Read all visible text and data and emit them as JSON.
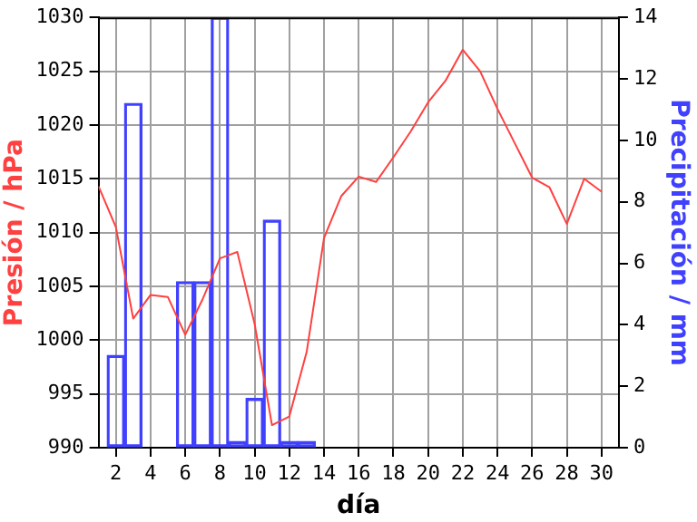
{
  "chart_data": {
    "type": "line",
    "xlabel": "día",
    "ylabel": "Presión / hPa",
    "y2label": "Precipitación / mm",
    "xlim": [
      1,
      31
    ],
    "xticks": [
      2,
      4,
      6,
      8,
      10,
      12,
      14,
      16,
      18,
      20,
      22,
      24,
      26,
      28,
      30
    ],
    "ylim": [
      990,
      1030
    ],
    "yticks": [
      990,
      995,
      1000,
      1005,
      1010,
      1015,
      1020,
      1025,
      1030
    ],
    "y2lim": [
      0,
      14
    ],
    "y2ticks": [
      0,
      2,
      4,
      6,
      8,
      10,
      12,
      14
    ],
    "grid": true,
    "legend": false,
    "marker": "none",
    "series": [
      {
        "type": "bar",
        "axis": "y2",
        "color": "#4040ff",
        "x": [
          1,
          2,
          3,
          4,
          5,
          6,
          7,
          8,
          9,
          10,
          11,
          12,
          13,
          14,
          15,
          16,
          17,
          18,
          19,
          20,
          21,
          22,
          23,
          24,
          25,
          26,
          27,
          28,
          29,
          30
        ],
        "values": [
          0,
          3.0,
          11.2,
          0,
          0,
          5.4,
          5.4,
          14,
          0.2,
          1.6,
          7.4,
          0.2,
          0.2,
          0,
          0,
          0,
          0,
          0,
          0,
          0,
          0,
          0,
          0,
          0,
          0,
          0,
          0,
          0,
          0,
          0
        ]
      },
      {
        "color": "#ff4040",
        "x": [
          1,
          2,
          3,
          4,
          5,
          6,
          7,
          8,
          9,
          10,
          11,
          12,
          13,
          14,
          15,
          16,
          17,
          18,
          19,
          20,
          21,
          22,
          23,
          24,
          25,
          26,
          27,
          28,
          29,
          30
        ],
        "values": [
          1014.3,
          1010.5,
          1002,
          1004.2,
          1004,
          1000.5,
          1003.8,
          1007.6,
          1008.2,
          1001.5,
          992.1,
          992.9,
          998.9,
          1009.5,
          1013.4,
          1015.2,
          1014.7,
          1017,
          1019.4,
          1022.1,
          1024.1,
          1027,
          1025,
          1021.5,
          1018.3,
          1015.1,
          1014.2,
          1010.8,
          1015,
          1013.8
        ]
      }
    ]
  }
}
